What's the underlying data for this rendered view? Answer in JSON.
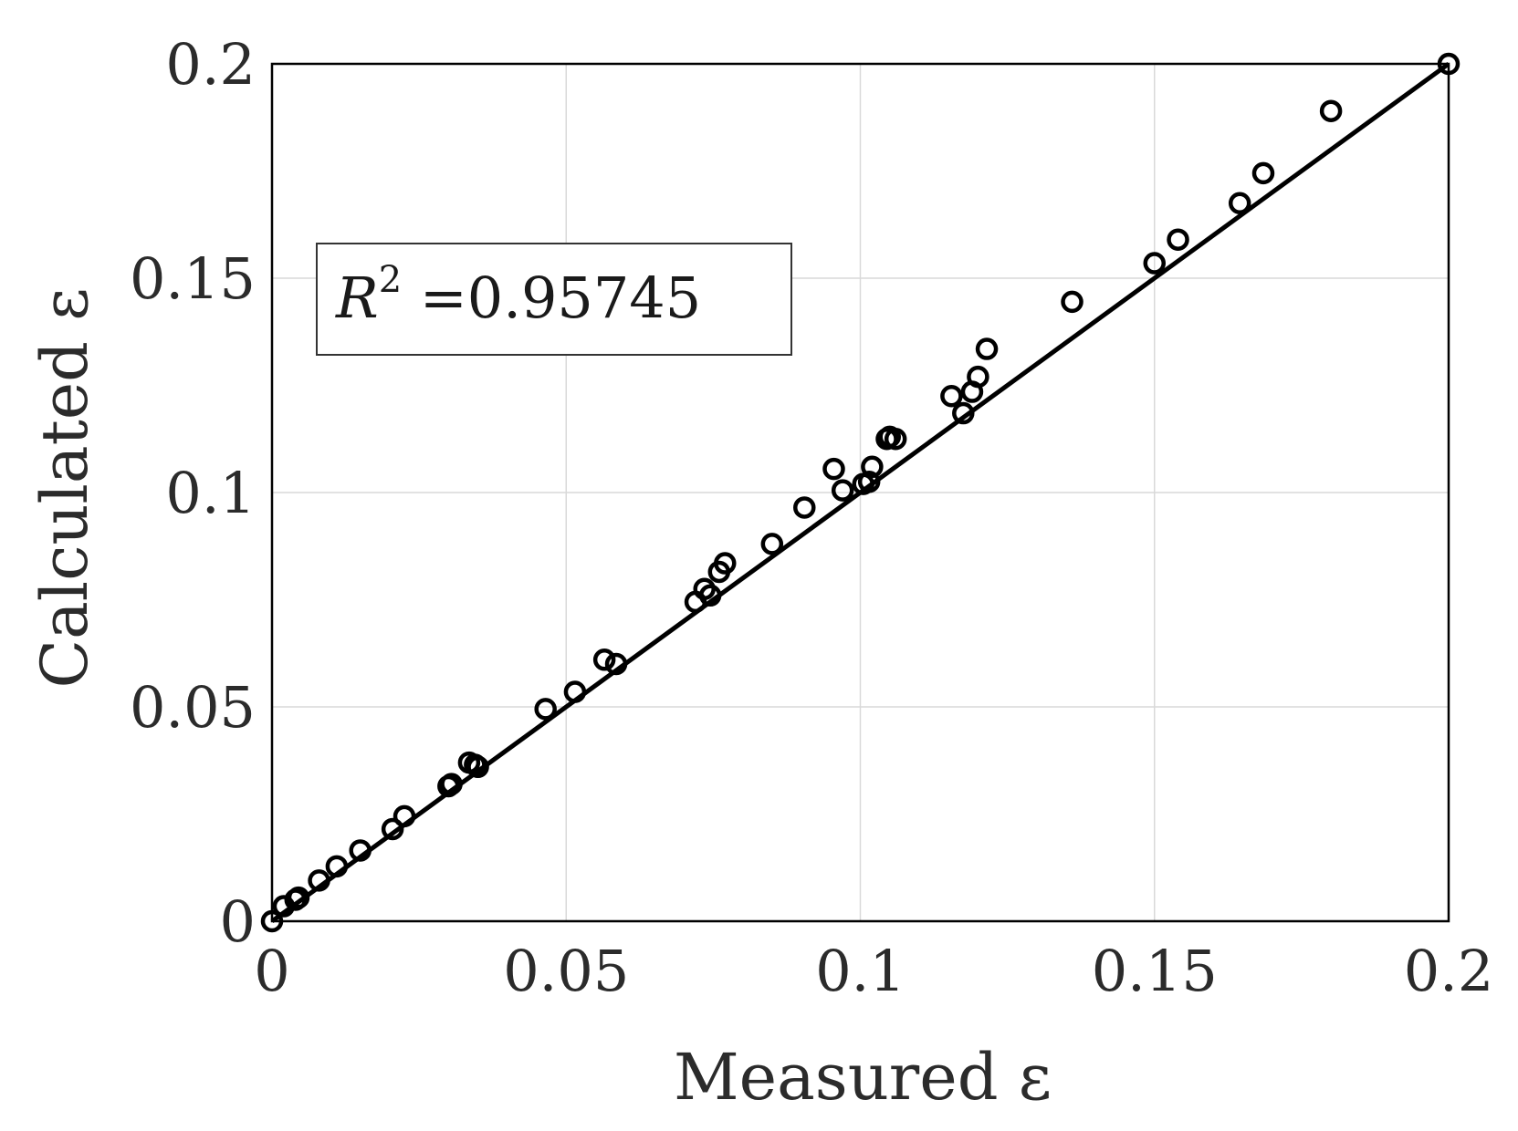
{
  "chart_data": {
    "type": "scatter",
    "xlabel": "Measured ε",
    "ylabel": "Calculated ε",
    "xlim": [
      0,
      0.2
    ],
    "ylim": [
      0,
      0.2
    ],
    "x_ticks": [
      0,
      0.05,
      0.1,
      0.15,
      0.2
    ],
    "y_ticks": [
      0,
      0.05,
      0.1,
      0.15,
      0.2
    ],
    "x_tick_labels": [
      "0",
      "0.05",
      "0.1",
      "0.15",
      "0.2"
    ],
    "y_tick_labels": [
      "0",
      "0.05",
      "0.1",
      "0.15",
      "0.2"
    ],
    "grid": true,
    "annotation": {
      "base": "R",
      "sup": "2",
      "rest": " =0.95745"
    },
    "fit_line": {
      "x": [
        0,
        0.2
      ],
      "y": [
        0,
        0.2
      ]
    },
    "series": [
      {
        "marker": "open-circle",
        "points": [
          [
            0.0,
            0.0
          ],
          [
            0.002,
            0.0035
          ],
          [
            0.004,
            0.005
          ],
          [
            0.0045,
            0.0055
          ],
          [
            0.008,
            0.0095
          ],
          [
            0.011,
            0.0128
          ],
          [
            0.015,
            0.0165
          ],
          [
            0.0205,
            0.0215
          ],
          [
            0.0225,
            0.0245
          ],
          [
            0.03,
            0.0315
          ],
          [
            0.0305,
            0.032
          ],
          [
            0.0335,
            0.037
          ],
          [
            0.0345,
            0.0365
          ],
          [
            0.035,
            0.036
          ],
          [
            0.0465,
            0.0495
          ],
          [
            0.0515,
            0.0535
          ],
          [
            0.0565,
            0.061
          ],
          [
            0.0585,
            0.06
          ],
          [
            0.072,
            0.0745
          ],
          [
            0.0735,
            0.0775
          ],
          [
            0.0745,
            0.076
          ],
          [
            0.076,
            0.0815
          ],
          [
            0.077,
            0.0835
          ],
          [
            0.085,
            0.088
          ],
          [
            0.0905,
            0.0965
          ],
          [
            0.0955,
            0.1055
          ],
          [
            0.097,
            0.1005
          ],
          [
            0.1005,
            0.102
          ],
          [
            0.1015,
            0.1025
          ],
          [
            0.102,
            0.106
          ],
          [
            0.1045,
            0.1125
          ],
          [
            0.105,
            0.113
          ],
          [
            0.106,
            0.1125
          ],
          [
            0.1155,
            0.1225
          ],
          [
            0.1175,
            0.1185
          ],
          [
            0.119,
            0.1235
          ],
          [
            0.12,
            0.127
          ],
          [
            0.1215,
            0.1335
          ],
          [
            0.136,
            0.1445
          ],
          [
            0.15,
            0.1535
          ],
          [
            0.154,
            0.159
          ],
          [
            0.1645,
            0.1675
          ],
          [
            0.1685,
            0.1745
          ],
          [
            0.18,
            0.189
          ],
          [
            0.2,
            0.2
          ]
        ]
      }
    ]
  }
}
